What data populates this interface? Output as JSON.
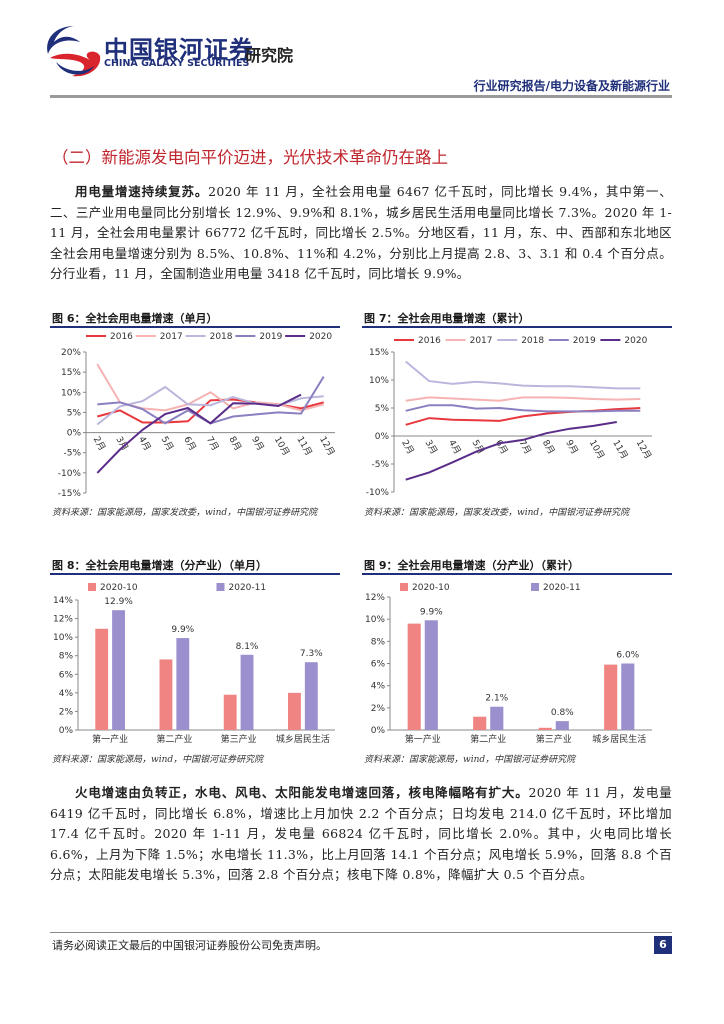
{
  "header": {
    "logo_cn": "中国银河证券",
    "logo_en": "CHINA GALAXY SECURITIES",
    "institute": "研究院",
    "report_type": "行业研究报告/电力设备及新能源行业"
  },
  "section_title": "（二）新能源发电向平价迈进，光伏技术革命仍在路上",
  "paragraphs": [
    {
      "lead": "用电量增速持续复苏。",
      "text": "2020 年 11 月，全社会用电量 6467 亿千瓦时，同比增长 9.4%，其中第一、二、三产业用电量同比分别增长 12.9%、9.9%和 8.1%，城乡居民生活用电量同比增长 7.3%。2020 年 1-11 月，全社会用电量累计 66772 亿千瓦时，同比增长 2.5%。分地区看，11 月，东、中、西部和东北地区全社会用电量增速分别为 8.5%、10.8%、11%和 4.2%，分别比上月提高 2.8、3、3.1 和 0.4 个百分点。分行业看，11 月，全国制造业用电量 3418 亿千瓦时，同比增长 9.9%。"
    },
    {
      "lead": "火电增速由负转正，水电、风电、太阳能发电增速回落，核电降幅略有扩大。",
      "text": "2020 年 11 月，发电量 6419 亿千瓦时，同比增长 6.8%，增速比上月加快 2.2 个百分点；日均发电 214.0 亿千瓦时，环比增加 17.4 亿千瓦时。2020 年 1-11 月，发电量 66824 亿千瓦时，同比增长 2.0%。其中，火电同比增长 6.6%，上月为下降 1.5%；水电增长 11.3%，比上月回落 14.1 个百分点；风电增长 5.9%，回落 8.8 个百分点；太阳能发电增长 5.3%，回落 2.8 个百分点；核电下降 0.8%，降幅扩大 0.5 个百分点。"
    }
  ],
  "chart_data": [
    {
      "type": "line",
      "title": "图 6：全社会用电量增速（单月）",
      "source": "资料来源：国家能源局，国家发改委，wind，中国银河证券研究院",
      "categories": [
        "2月",
        "3月",
        "4月",
        "5月",
        "6月",
        "7月",
        "8月",
        "9月",
        "10月",
        "11月",
        "12月"
      ],
      "series": [
        {
          "name": "2016",
          "color": "#e8383d",
          "values": [
            4,
            5.5,
            2.5,
            2.5,
            2.8,
            8,
            8.2,
            7.5,
            7,
            6,
            7.5
          ]
        },
        {
          "name": "2017",
          "color": "#f7b3b3",
          "values": [
            17,
            7.5,
            6,
            5.5,
            7,
            10,
            6,
            7.5,
            7,
            5.5,
            7
          ]
        },
        {
          "name": "2018",
          "color": "#bcb5dc",
          "values": [
            2,
            6.5,
            7.8,
            11.3,
            7,
            6.8,
            8.8,
            7.2,
            6.7,
            8.5,
            9
          ]
        },
        {
          "name": "2019",
          "color": "#8a7fc0",
          "values": [
            7,
            7.5,
            5.8,
            2.3,
            5.5,
            2.3,
            4,
            4.5,
            5,
            4.7,
            13.9
          ]
        },
        {
          "name": "2020",
          "color": "#5b2d8a",
          "values": [
            -10,
            -4.2,
            0.7,
            4.6,
            6.1,
            2.3,
            7.3,
            7.2,
            6.6,
            9.4,
            null
          ]
        }
      ],
      "ylim": [
        -15,
        20
      ],
      "yticks": [
        {
          "value": -15,
          "label": "-15%"
        },
        {
          "value": -10,
          "label": "-10%"
        },
        {
          "value": -5,
          "label": "-5%"
        },
        {
          "value": 0,
          "label": "0%"
        },
        {
          "value": 5,
          "label": "5%"
        },
        {
          "value": 10,
          "label": "10%"
        },
        {
          "value": 15,
          "label": "15%"
        },
        {
          "value": 20,
          "label": "20%"
        }
      ]
    },
    {
      "type": "line",
      "title": "图 7：全社会用电量增速（累计）",
      "source": "资料来源：国家能源局，国家发改委，wind，中国银河证券研究院",
      "categories": [
        "2月",
        "3月",
        "4月",
        "5月",
        "6月",
        "7月",
        "8月",
        "9月",
        "10月",
        "11月",
        "12月"
      ],
      "series": [
        {
          "name": "2016",
          "color": "#e8383d",
          "values": [
            2,
            3.2,
            2.9,
            2.8,
            2.7,
            3.5,
            4,
            4.3,
            4.5,
            4.8,
            5
          ]
        },
        {
          "name": "2017",
          "color": "#f7b3b3",
          "values": [
            6.3,
            6.9,
            6.7,
            6.5,
            6.3,
            6.9,
            6.9,
            6.8,
            6.6,
            6.5,
            6.6
          ]
        },
        {
          "name": "2018",
          "color": "#bcb5dc",
          "values": [
            13.3,
            9.8,
            9.3,
            9.7,
            9.4,
            9,
            8.9,
            8.9,
            8.7,
            8.5,
            8.5
          ]
        },
        {
          "name": "2019",
          "color": "#8a7fc0",
          "values": [
            4.5,
            5.5,
            5.5,
            4.9,
            5,
            4.6,
            4.4,
            4.4,
            4.4,
            4.5,
            4.5
          ]
        },
        {
          "name": "2020",
          "color": "#5b2d8a",
          "values": [
            -7.8,
            -6.5,
            -4.7,
            -2.8,
            -1.3,
            -0.7,
            0.5,
            1.3,
            1.8,
            2.5,
            null
          ]
        }
      ],
      "ylim": [
        -10,
        15
      ],
      "yticks": [
        {
          "value": -10,
          "label": "-10%"
        },
        {
          "value": -5,
          "label": "-5%"
        },
        {
          "value": 0,
          "label": "0%"
        },
        {
          "value": 5,
          "label": "5%"
        },
        {
          "value": 10,
          "label": "10%"
        },
        {
          "value": 15,
          "label": "15%"
        }
      ]
    },
    {
      "type": "bar",
      "title": "图 8：全社会用电量增速（分产业）（单月）",
      "source": "资料来源：国家能源局，wind，中国银河证券研究院",
      "categories": [
        "第一产业",
        "第二产业",
        "第三产业",
        "城乡居民生活"
      ],
      "series": [
        {
          "name": "2020-10",
          "color": "#f08482",
          "values": [
            10.9,
            7.6,
            3.8,
            4.0
          ]
        },
        {
          "name": "2020-11",
          "color": "#9b8fce",
          "values": [
            12.9,
            9.9,
            8.1,
            7.3
          ],
          "value_labels": [
            "12.9%",
            "9.9%",
            "8.1%",
            "7.3%"
          ]
        }
      ],
      "ylim": [
        0,
        14
      ],
      "yticks": [
        {
          "value": 0,
          "label": "0%"
        },
        {
          "value": 2,
          "label": "2%"
        },
        {
          "value": 4,
          "label": "4%"
        },
        {
          "value": 6,
          "label": "6%"
        },
        {
          "value": 8,
          "label": "8%"
        },
        {
          "value": 10,
          "label": "10%"
        },
        {
          "value": 12,
          "label": "12%"
        },
        {
          "value": 14,
          "label": "14%"
        }
      ]
    },
    {
      "type": "bar",
      "title": "图 9：全社会用电量增速（分产业）（累计）",
      "source": "资料来源：国家能源局，wind，中国银河证券研究院",
      "categories": [
        "第一产业",
        "第二产业",
        "第三产业",
        "城乡居民生活"
      ],
      "series": [
        {
          "name": "2020-10",
          "color": "#f08482",
          "values": [
            9.6,
            1.2,
            0.2,
            5.9
          ]
        },
        {
          "name": "2020-11",
          "color": "#9b8fce",
          "values": [
            9.9,
            2.1,
            0.8,
            6.0
          ],
          "value_labels": [
            "9.9%",
            "2.1%",
            "0.8%",
            "6.0%"
          ]
        }
      ],
      "ylim": [
        0,
        12
      ],
      "yticks": [
        {
          "value": 0,
          "label": "0%"
        },
        {
          "value": 2,
          "label": "2%"
        },
        {
          "value": 4,
          "label": "4%"
        },
        {
          "value": 6,
          "label": "6%"
        },
        {
          "value": 8,
          "label": "8%"
        },
        {
          "value": 10,
          "label": "10%"
        },
        {
          "value": 12,
          "label": "12%"
        }
      ]
    }
  ],
  "footer": {
    "disclaimer": "请务必阅读正文最后的中国银河证券股份公司免责声明。",
    "page": "6"
  }
}
